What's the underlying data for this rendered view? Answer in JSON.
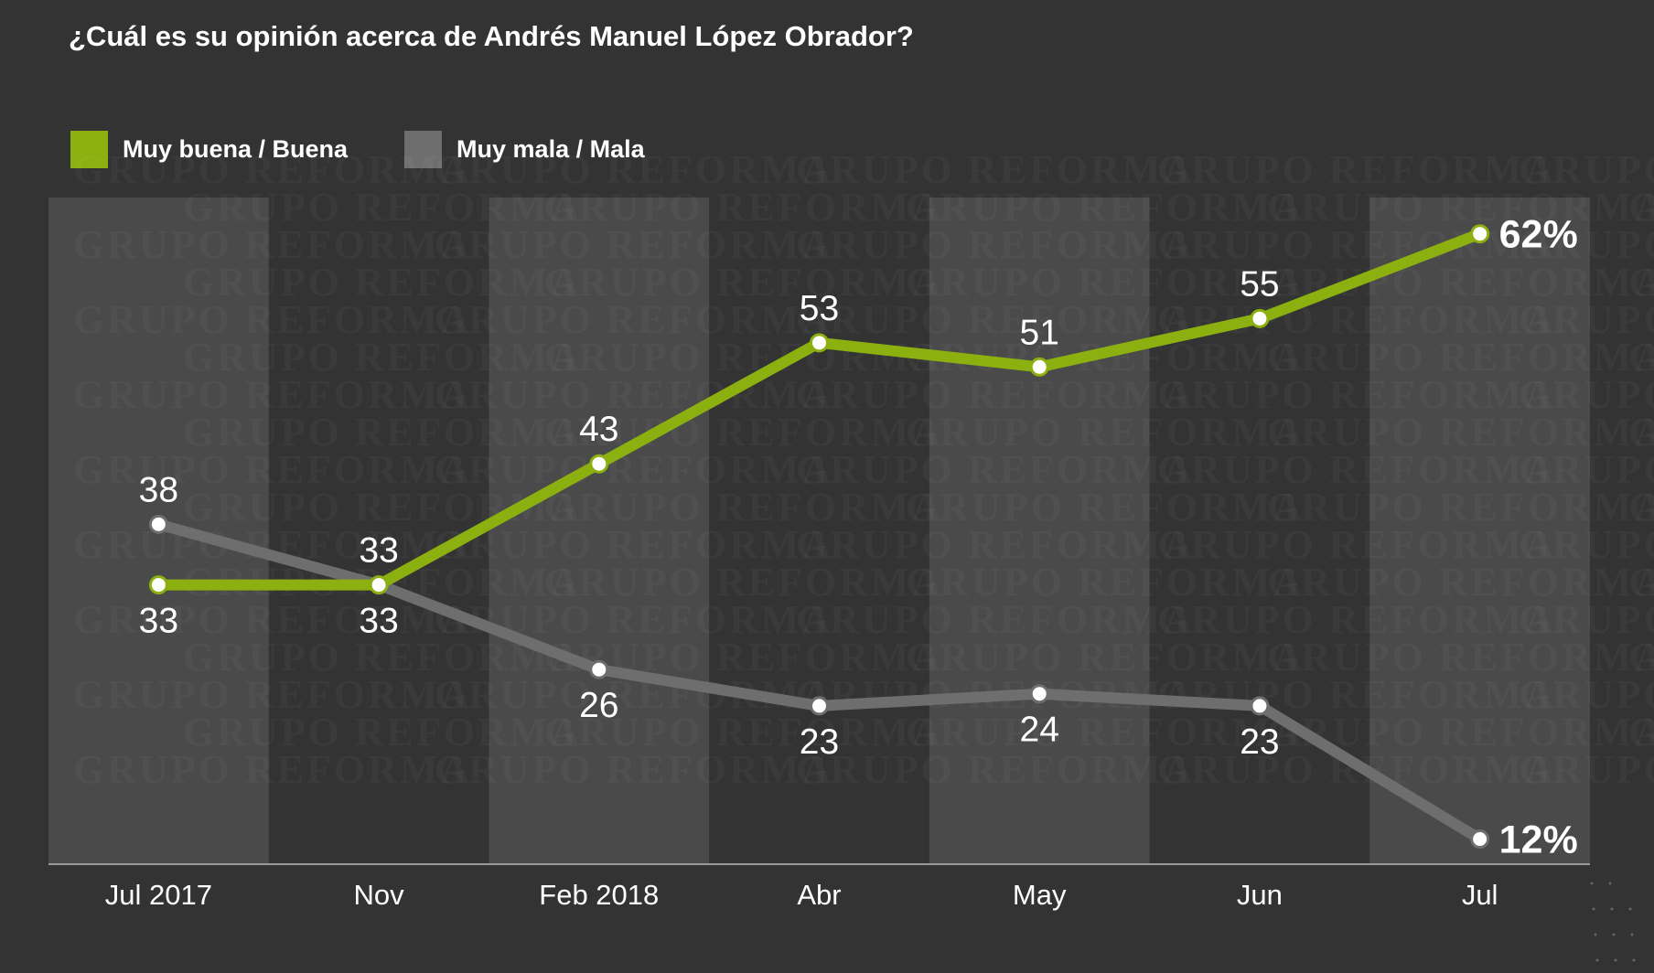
{
  "title": "¿Cuál es su opinión acerca de Andrés Manuel López Obrador?",
  "watermark": "GRUPO REFORMA",
  "colors": {
    "background": "#333333",
    "band": "#4a4a4a",
    "axis": "#9a9a9a",
    "marker_fill": "#ffffff"
  },
  "chart_data": {
    "type": "line",
    "title": "¿Cuál es su opinión acerca de Andrés Manuel López Obrador?",
    "xlabel": "",
    "ylabel": "",
    "categories": [
      "Jul 2017",
      "Nov",
      "Feb 2018",
      "Abr",
      "May",
      "Jun",
      "Jul"
    ],
    "ylim": [
      10,
      65
    ],
    "grid": false,
    "legend_position": "top-left",
    "series": [
      {
        "name": "Muy buena / Buena",
        "color": "#8cb00f",
        "values": [
          33,
          33,
          43,
          53,
          51,
          55,
          62
        ],
        "labels": [
          "33",
          "33",
          "43",
          "53",
          "51",
          "55",
          "62%"
        ],
        "label_position": [
          "below",
          "above",
          "above",
          "above",
          "above",
          "above",
          "right"
        ]
      },
      {
        "name": "Muy mala / Mala",
        "color": "#6e6e6e",
        "values": [
          38,
          33,
          26,
          23,
          24,
          23,
          12
        ],
        "labels": [
          "38",
          "33",
          "26",
          "23",
          "24",
          "23",
          "12%"
        ],
        "label_position": [
          "above",
          "below",
          "below",
          "below",
          "below",
          "below",
          "right"
        ]
      }
    ]
  }
}
